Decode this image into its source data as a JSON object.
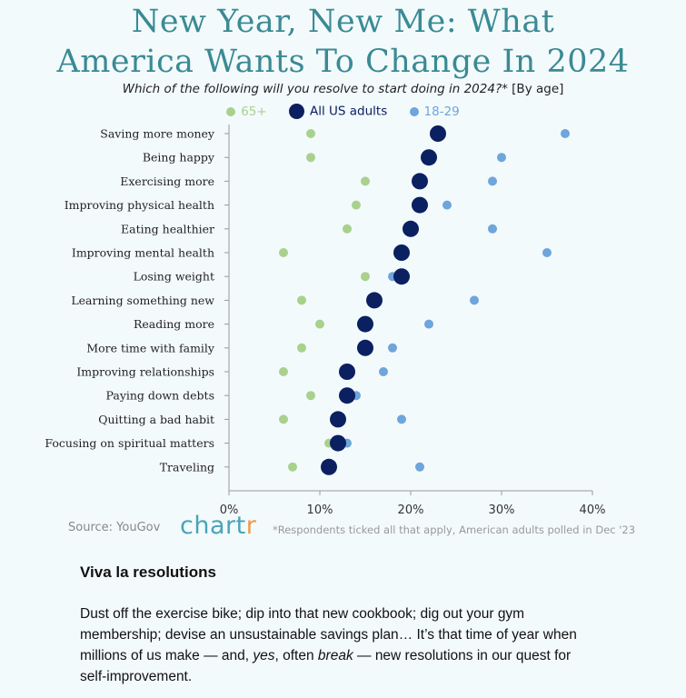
{
  "header": {
    "title_line1": "New Year, New Me: What",
    "title_line2": "America Wants To Change In 2024",
    "subtitle_question": "Which of the following will you resolve to start doing in 2024?*",
    "subtitle_by": " [By age]"
  },
  "legend": {
    "s65": "65+",
    "all": "All US adults",
    "s18": "18-29"
  },
  "colors": {
    "s65": "#a9d18e",
    "all": "#0b2060",
    "s18": "#6ea5db",
    "title": "#3a8a94",
    "logo": "#4aa3b8",
    "logo_accent": "#f2994a"
  },
  "chart_data": {
    "type": "dot-plot",
    "title": "New Year, New Me: What America Wants To Change In 2024",
    "subtitle": "Which of the following will you resolve to start doing in 2024?* [By age]",
    "xlabel": "",
    "ylabel": "",
    "xlim": [
      0,
      40
    ],
    "x_ticks": [
      "0%",
      "10%",
      "20%",
      "30%",
      "40%"
    ],
    "categories": [
      "Saving more money",
      "Being happy",
      "Exercising more",
      "Improving physical health",
      "Eating healthier",
      "Improving mental health",
      "Losing weight",
      "Learning something new",
      "Reading more",
      "More time with family",
      "Improving relationships",
      "Paying down debts",
      "Quitting a bad habit",
      "Focusing on spiritual matters",
      "Traveling"
    ],
    "series": [
      {
        "name": "65+",
        "values": [
          9,
          9,
          15,
          14,
          13,
          6,
          15,
          8,
          10,
          8,
          6,
          9,
          6,
          11,
          7
        ]
      },
      {
        "name": "18-29",
        "values": [
          37,
          30,
          29,
          24,
          29,
          35,
          18,
          27,
          22,
          18,
          17,
          14,
          19,
          13,
          21
        ]
      },
      {
        "name": "All US adults",
        "values": [
          23,
          22,
          21,
          21,
          20,
          19,
          19,
          16,
          15,
          15,
          13,
          13,
          12,
          12,
          11
        ]
      }
    ]
  },
  "footer": {
    "source": "Source: YouGov",
    "logo_main": "chart",
    "logo_accent": "r",
    "footnote": "*Respondents ticked all that apply, American adults polled in Dec '23"
  },
  "article": {
    "heading": "Viva la resolutions",
    "p_part1": "Dust off the exercise bike; dip into that new cookbook; dig out your gym membership; devise an unsustainable savings plan… It’s that time of year when millions of us make — and, ",
    "p_em1": "yes",
    "p_part2": ", often ",
    "p_em2": "break",
    "p_part3": " — new resolutions in our quest for self-improvement."
  }
}
